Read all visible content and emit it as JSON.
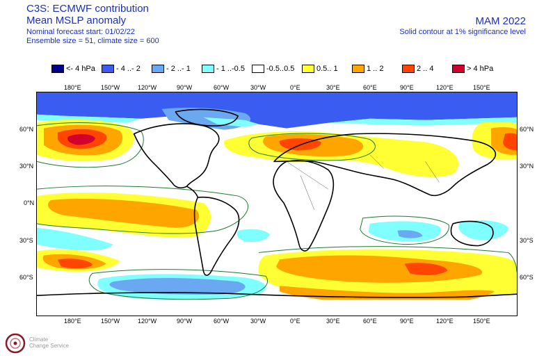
{
  "header": {
    "title": "C3S: ECMWF contribution",
    "subtitle": "Mean MSLP anomaly",
    "forecast_start": "Nominal forecast start: 01/02/22",
    "ensemble": "Ensemble size = 51, climate size = 600",
    "season": "MAM 2022",
    "significance": "Solid contour at 1% significance level"
  },
  "legend": [
    {
      "label": "<- 4 hPa",
      "color": "#00008b"
    },
    {
      "label": "- 4 ..- 2",
      "color": "#3a5cf0"
    },
    {
      "label": "- 2 ..- 1",
      "color": "#6aa8f2"
    },
    {
      "label": "- 1 ..-0.5",
      "color": "#7fffff"
    },
    {
      "label": "-0.5..0.5",
      "color": "#ffffff"
    },
    {
      "label": "0.5.. 1",
      "color": "#ffff33"
    },
    {
      "label": "1 .. 2",
      "color": "#ffa500"
    },
    {
      "label": "2 .. 4",
      "color": "#ff4500"
    },
    {
      "label": "> 4 hPa",
      "color": "#d1002f"
    }
  ],
  "lon_ticks": [
    "180°E",
    "150°W",
    "120°W",
    "90°W",
    "60°W",
    "30°W",
    "0°E",
    "30°E",
    "60°E",
    "90°E",
    "120°E",
    "150°E"
  ],
  "lat_ticks": [
    "60°N",
    "30°N",
    "0°N",
    "30°S",
    "60°S"
  ],
  "logo": {
    "text1": "Climate",
    "text2": "Change Service"
  }
}
